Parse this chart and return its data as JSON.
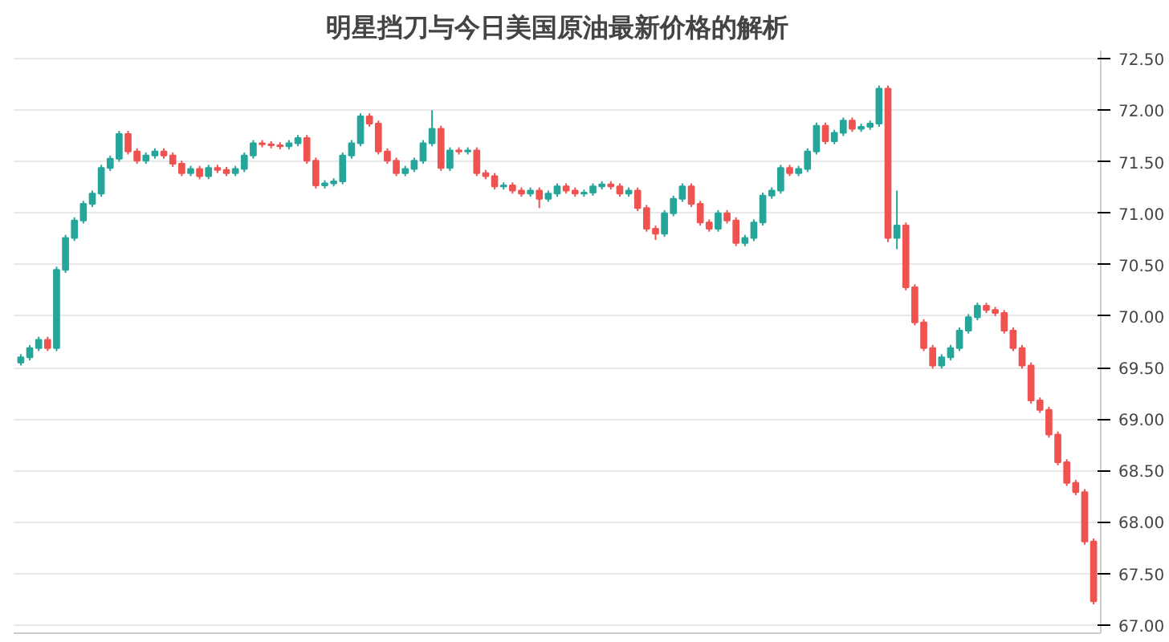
{
  "chart_data": {
    "type": "candlestick",
    "title": "明星挡刀与今日美国原油最新价格的解析",
    "categories": [
      null,
      null,
      null,
      null,
      null,
      null,
      null,
      null,
      null,
      null,
      null,
      null,
      null,
      null,
      null,
      null,
      null,
      null,
      null,
      null,
      null,
      null,
      null,
      null,
      null,
      null,
      null,
      null,
      null,
      null,
      null,
      null,
      null,
      null,
      null,
      null,
      null,
      null,
      null,
      null,
      null,
      null,
      null,
      null,
      null,
      null,
      null,
      null,
      null,
      null,
      null,
      null,
      null,
      null,
      null,
      null,
      null,
      null,
      null,
      null,
      null,
      null,
      null,
      null,
      null,
      null,
      null,
      null,
      null,
      null,
      null,
      null,
      null,
      null,
      null,
      null,
      null,
      null,
      null,
      null,
      null,
      null,
      null,
      null,
      null,
      null,
      null,
      null,
      null,
      null,
      null,
      null,
      null,
      null,
      null,
      null,
      null,
      null,
      null,
      null,
      null,
      null,
      null,
      null,
      null,
      null,
      null,
      null,
      null,
      null,
      null,
      null,
      null,
      null,
      null,
      null,
      null,
      null,
      null,
      null,
      null
    ],
    "ohlc": [
      [
        69.55,
        69.63,
        69.52,
        69.6
      ],
      [
        69.6,
        69.72,
        69.57,
        69.69
      ],
      [
        69.69,
        69.8,
        69.66,
        69.77
      ],
      [
        69.77,
        69.8,
        69.66,
        69.69
      ],
      [
        69.69,
        70.48,
        69.66,
        70.45
      ],
      [
        70.45,
        70.79,
        70.42,
        70.76
      ],
      [
        70.76,
        70.96,
        70.73,
        70.93
      ],
      [
        70.93,
        71.12,
        70.9,
        71.09
      ],
      [
        71.09,
        71.22,
        71.06,
        71.19
      ],
      [
        71.19,
        71.47,
        71.16,
        71.44
      ],
      [
        71.44,
        71.56,
        71.41,
        71.53
      ],
      [
        71.53,
        71.8,
        71.5,
        71.77
      ],
      [
        71.77,
        71.8,
        71.57,
        71.6
      ],
      [
        71.6,
        71.63,
        71.48,
        71.51
      ],
      [
        71.51,
        71.59,
        71.48,
        71.56
      ],
      [
        71.56,
        71.63,
        71.53,
        71.6
      ],
      [
        71.6,
        71.63,
        71.53,
        71.56
      ],
      [
        71.56,
        71.59,
        71.45,
        71.48
      ],
      [
        71.48,
        71.51,
        71.36,
        71.39
      ],
      [
        71.39,
        71.46,
        71.36,
        71.43
      ],
      [
        71.43,
        71.46,
        71.33,
        71.36
      ],
      [
        71.36,
        71.47,
        71.33,
        71.44
      ],
      [
        71.44,
        71.47,
        71.39,
        71.42
      ],
      [
        71.42,
        71.45,
        71.36,
        71.39
      ],
      [
        71.39,
        71.46,
        71.36,
        71.43
      ],
      [
        71.43,
        71.59,
        71.4,
        71.56
      ],
      [
        71.56,
        71.71,
        71.53,
        71.68
      ],
      [
        71.68,
        71.71,
        71.64,
        71.67
      ],
      [
        71.67,
        71.7,
        71.63,
        71.66
      ],
      [
        71.66,
        71.69,
        71.62,
        71.65
      ],
      [
        71.65,
        71.71,
        71.62,
        71.68
      ],
      [
        71.68,
        71.76,
        71.65,
        71.73
      ],
      [
        71.73,
        71.76,
        71.48,
        71.51
      ],
      [
        71.51,
        71.54,
        71.24,
        71.27
      ],
      [
        71.27,
        71.32,
        71.24,
        71.29
      ],
      [
        71.29,
        71.34,
        71.26,
        71.31
      ],
      [
        71.31,
        71.59,
        71.28,
        71.56
      ],
      [
        71.56,
        71.71,
        71.53,
        71.68
      ],
      [
        71.68,
        71.97,
        71.65,
        71.94
      ],
      [
        71.94,
        71.97,
        71.84,
        71.87
      ],
      [
        71.87,
        71.9,
        71.57,
        71.6
      ],
      [
        71.6,
        71.63,
        71.48,
        71.51
      ],
      [
        71.51,
        71.54,
        71.36,
        71.39
      ],
      [
        71.39,
        71.46,
        71.36,
        71.43
      ],
      [
        71.43,
        71.54,
        71.4,
        71.51
      ],
      [
        71.51,
        71.71,
        71.48,
        71.68
      ],
      [
        71.68,
        72.0,
        71.65,
        71.82
      ],
      [
        71.82,
        71.85,
        71.41,
        71.44
      ],
      [
        71.44,
        71.64,
        71.41,
        71.61
      ],
      [
        71.61,
        71.64,
        71.57,
        71.6
      ],
      [
        71.6,
        71.64,
        71.57,
        71.61
      ],
      [
        71.61,
        71.64,
        71.36,
        71.39
      ],
      [
        71.39,
        71.42,
        71.33,
        71.36
      ],
      [
        71.36,
        71.39,
        71.23,
        71.26
      ],
      [
        71.26,
        71.3,
        71.23,
        71.27
      ],
      [
        71.27,
        71.3,
        71.19,
        71.22
      ],
      [
        71.22,
        71.25,
        71.16,
        71.19
      ],
      [
        71.19,
        71.25,
        71.16,
        71.22
      ],
      [
        71.22,
        71.25,
        71.05,
        71.14
      ],
      [
        71.14,
        71.22,
        71.11,
        71.19
      ],
      [
        71.19,
        71.29,
        71.16,
        71.26
      ],
      [
        71.26,
        71.29,
        71.19,
        71.22
      ],
      [
        71.22,
        71.25,
        71.16,
        71.19
      ],
      [
        71.19,
        71.23,
        71.16,
        71.2
      ],
      [
        71.2,
        71.29,
        71.17,
        71.26
      ],
      [
        71.26,
        71.31,
        71.23,
        71.28
      ],
      [
        71.28,
        71.31,
        71.23,
        71.26
      ],
      [
        71.26,
        71.29,
        71.16,
        71.19
      ],
      [
        71.19,
        71.25,
        71.16,
        71.22
      ],
      [
        71.22,
        71.25,
        71.02,
        71.05
      ],
      [
        71.05,
        71.08,
        70.82,
        70.85
      ],
      [
        70.85,
        70.88,
        70.74,
        70.8
      ],
      [
        70.8,
        71.03,
        70.77,
        71.0
      ],
      [
        71.0,
        71.17,
        70.97,
        71.14
      ],
      [
        71.14,
        71.29,
        71.11,
        71.26
      ],
      [
        71.26,
        71.29,
        71.06,
        71.09
      ],
      [
        71.09,
        71.12,
        70.88,
        70.91
      ],
      [
        70.91,
        70.94,
        70.82,
        70.85
      ],
      [
        70.85,
        71.03,
        70.82,
        71.0
      ],
      [
        71.0,
        71.03,
        70.9,
        70.93
      ],
      [
        70.93,
        70.96,
        70.68,
        70.71
      ],
      [
        70.71,
        70.79,
        70.68,
        70.76
      ],
      [
        70.76,
        70.94,
        70.73,
        70.91
      ],
      [
        70.91,
        71.2,
        70.88,
        71.17
      ],
      [
        71.17,
        71.25,
        71.14,
        71.22
      ],
      [
        71.22,
        71.47,
        71.19,
        71.44
      ],
      [
        71.44,
        71.47,
        71.36,
        71.39
      ],
      [
        71.39,
        71.46,
        71.36,
        71.43
      ],
      [
        71.43,
        71.63,
        71.4,
        71.6
      ],
      [
        71.6,
        71.88,
        71.57,
        71.85
      ],
      [
        71.85,
        71.88,
        71.67,
        71.7
      ],
      [
        71.7,
        71.81,
        71.67,
        71.78
      ],
      [
        71.78,
        71.93,
        71.75,
        71.9
      ],
      [
        71.9,
        71.93,
        71.79,
        71.82
      ],
      [
        71.82,
        71.87,
        71.79,
        71.84
      ],
      [
        71.84,
        71.9,
        71.81,
        71.87
      ],
      [
        71.87,
        72.24,
        71.84,
        72.21
      ],
      [
        72.21,
        72.24,
        70.72,
        70.76
      ],
      [
        70.76,
        71.22,
        70.65,
        70.88
      ],
      [
        70.88,
        70.91,
        70.25,
        70.28
      ],
      [
        70.28,
        70.31,
        69.91,
        69.94
      ],
      [
        69.94,
        69.97,
        69.66,
        69.69
      ],
      [
        69.69,
        69.72,
        69.49,
        69.52
      ],
      [
        69.52,
        69.63,
        69.49,
        69.6
      ],
      [
        69.6,
        69.72,
        69.57,
        69.69
      ],
      [
        69.69,
        69.89,
        69.66,
        69.86
      ],
      [
        69.86,
        70.02,
        69.83,
        69.99
      ],
      [
        69.99,
        70.13,
        69.96,
        70.1
      ],
      [
        70.1,
        70.13,
        70.03,
        70.06
      ],
      [
        70.06,
        70.09,
        70.0,
        70.03
      ],
      [
        70.03,
        70.06,
        69.83,
        69.86
      ],
      [
        69.86,
        69.89,
        69.66,
        69.69
      ],
      [
        69.69,
        69.72,
        69.49,
        69.52
      ],
      [
        69.52,
        69.55,
        69.15,
        69.18
      ],
      [
        69.18,
        69.21,
        69.06,
        69.09
      ],
      [
        69.09,
        69.12,
        68.82,
        68.85
      ],
      [
        68.85,
        68.88,
        68.55,
        68.58
      ],
      [
        68.58,
        68.61,
        68.35,
        68.38
      ],
      [
        68.38,
        68.41,
        68.26,
        68.29
      ],
      [
        68.29,
        68.32,
        67.78,
        67.81
      ],
      [
        67.81,
        67.84,
        67.2,
        67.23
      ]
    ],
    "ylim": [
      66.92,
      72.58
    ],
    "yticks": [
      {
        "value": 67.0,
        "label": "67.00"
      },
      {
        "value": 67.5,
        "label": "67.50"
      },
      {
        "value": 68.0,
        "label": "68.00"
      },
      {
        "value": 68.5,
        "label": "68.50"
      },
      {
        "value": 69.0,
        "label": "69.00"
      },
      {
        "value": 69.5,
        "label": "69.50"
      },
      {
        "value": 70.0,
        "label": "70.00"
      },
      {
        "value": 70.5,
        "label": "70.50"
      },
      {
        "value": 71.0,
        "label": "71.00"
      },
      {
        "value": 71.5,
        "label": "71.50"
      },
      {
        "value": 72.0,
        "label": "72.00"
      },
      {
        "value": 72.5,
        "label": "72.50"
      }
    ],
    "grid": "y"
  }
}
